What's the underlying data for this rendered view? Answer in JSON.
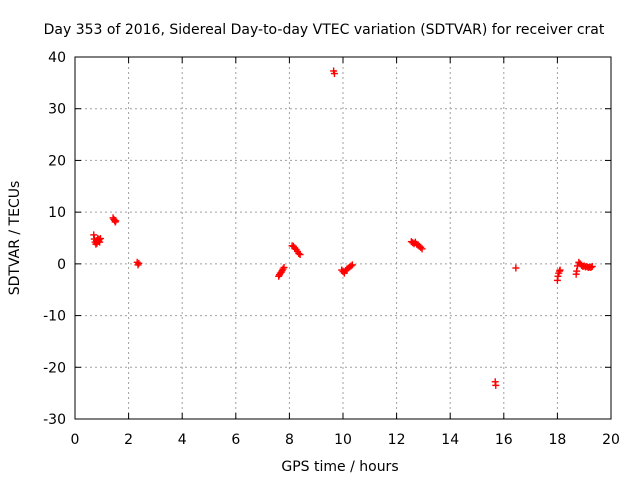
{
  "chart_data": {
    "type": "scatter",
    "title": "Day 353 of 2016, Sidereal Day-to-day VTEC variation (SDTVAR) for receiver crat",
    "xlabel": "GPS time / hours",
    "ylabel": "SDTVAR / TECUs",
    "xlim": [
      0,
      20
    ],
    "ylim": [
      -30,
      40
    ],
    "xticks": [
      "0",
      "2",
      "4",
      "6",
      "8",
      "10",
      "12",
      "14",
      "16",
      "18",
      "20"
    ],
    "yticks": [
      "-30",
      "-20",
      "-10",
      "0",
      "10",
      "20",
      "30",
      "40"
    ],
    "grid": true,
    "marker": "plus",
    "series": [
      {
        "name": "SDTVAR",
        "color": "#ff0000",
        "points": [
          [
            0.7,
            5.6
          ],
          [
            0.72,
            4.8
          ],
          [
            0.75,
            4.2
          ],
          [
            0.78,
            3.8
          ],
          [
            0.8,
            4.5
          ],
          [
            0.82,
            4.0
          ],
          [
            0.85,
            4.9
          ],
          [
            0.88,
            4.4
          ],
          [
            0.9,
            4.7
          ],
          [
            0.92,
            4.2
          ],
          [
            0.95,
            4.9
          ],
          [
            1.42,
            8.9
          ],
          [
            1.45,
            8.6
          ],
          [
            1.48,
            8.4
          ],
          [
            1.5,
            8.1
          ],
          [
            1.52,
            8.3
          ],
          [
            2.32,
            0.3
          ],
          [
            2.35,
            -0.2
          ],
          [
            2.38,
            0.1
          ],
          [
            7.6,
            -2.4
          ],
          [
            7.63,
            -2.1
          ],
          [
            7.66,
            -1.8
          ],
          [
            7.7,
            -1.6
          ],
          [
            7.73,
            -1.3
          ],
          [
            7.76,
            -1.0
          ],
          [
            7.8,
            -0.7
          ],
          [
            8.1,
            3.5
          ],
          [
            8.15,
            3.4
          ],
          [
            8.2,
            3.1
          ],
          [
            8.25,
            2.8
          ],
          [
            8.3,
            2.4
          ],
          [
            8.35,
            2.0
          ],
          [
            8.4,
            1.8
          ],
          [
            9.65,
            37.3
          ],
          [
            9.68,
            36.8
          ],
          [
            9.95,
            -1.2
          ],
          [
            10.0,
            -1.5
          ],
          [
            10.05,
            -1.8
          ],
          [
            10.1,
            -1.3
          ],
          [
            10.15,
            -1.0
          ],
          [
            10.2,
            -0.8
          ],
          [
            10.25,
            -0.6
          ],
          [
            10.3,
            -0.4
          ],
          [
            10.35,
            -0.2
          ],
          [
            12.55,
            4.3
          ],
          [
            12.6,
            4.1
          ],
          [
            12.65,
            3.9
          ],
          [
            12.7,
            4.2
          ],
          [
            12.75,
            3.8
          ],
          [
            12.8,
            3.6
          ],
          [
            12.85,
            3.4
          ],
          [
            12.9,
            3.2
          ],
          [
            12.95,
            2.9
          ],
          [
            15.68,
            -22.8
          ],
          [
            15.7,
            -23.5
          ],
          [
            16.45,
            -0.8
          ],
          [
            18.0,
            -3.2
          ],
          [
            18.02,
            -2.4
          ],
          [
            18.05,
            -1.8
          ],
          [
            18.08,
            -1.4
          ],
          [
            18.1,
            -1.2
          ],
          [
            18.7,
            -2.0
          ],
          [
            18.72,
            -1.4
          ],
          [
            18.75,
            -0.4
          ],
          [
            18.8,
            0.3
          ],
          [
            18.85,
            0.0
          ],
          [
            18.9,
            -0.3
          ],
          [
            18.95,
            -0.5
          ],
          [
            19.0,
            -0.4
          ],
          [
            19.05,
            -0.6
          ],
          [
            19.1,
            -0.5
          ],
          [
            19.15,
            -0.7
          ],
          [
            19.2,
            -0.6
          ],
          [
            19.25,
            -0.7
          ],
          [
            19.3,
            -0.5
          ]
        ]
      }
    ]
  }
}
